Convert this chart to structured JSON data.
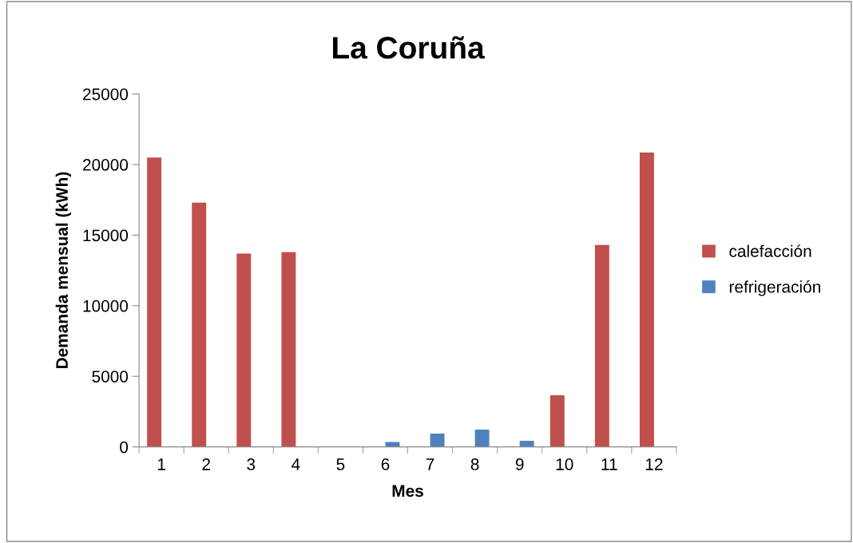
{
  "chart_data": {
    "type": "bar",
    "title": "La Coruña",
    "xlabel": "Mes",
    "ylabel": "Demanda mensual (kWh)",
    "categories": [
      "1",
      "2",
      "3",
      "4",
      "5",
      "6",
      "7",
      "8",
      "9",
      "10",
      "11",
      "12"
    ],
    "series": [
      {
        "name": "calefacción",
        "color": "#c0504d",
        "values": [
          20500,
          17300,
          13700,
          13800,
          0,
          0,
          0,
          0,
          0,
          3650,
          14300,
          20850
        ]
      },
      {
        "name": "refrigeración",
        "color": "#4f81bd",
        "values": [
          0,
          0,
          0,
          0,
          0,
          350,
          940,
          1220,
          430,
          0,
          0,
          0
        ]
      }
    ],
    "ylim": [
      0,
      25000
    ],
    "yticks": [
      0,
      5000,
      10000,
      15000,
      20000,
      25000
    ],
    "grid": false,
    "legend": "right"
  }
}
